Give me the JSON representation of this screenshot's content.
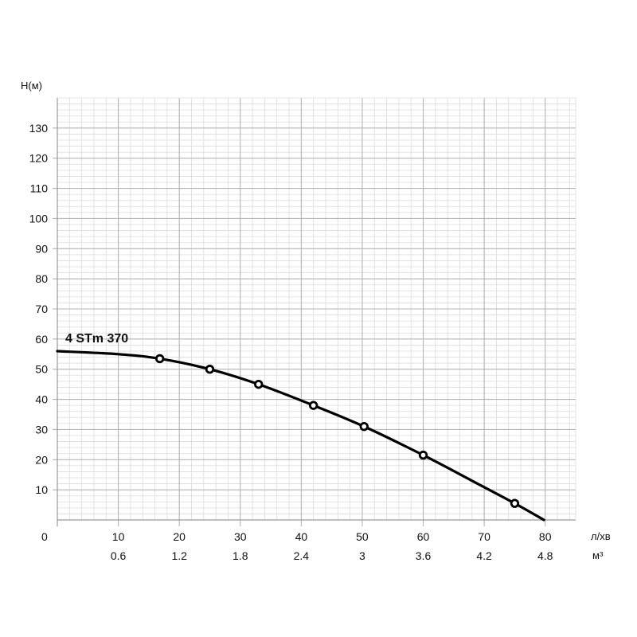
{
  "chart_data": {
    "type": "line",
    "ylabel": "Н(м)",
    "xlabel_primary": "л/хв",
    "xlabel_secondary": "м³",
    "origin_label": "0",
    "xlim": [
      0,
      85
    ],
    "ylim": [
      0,
      140
    ],
    "grid": true,
    "x_ticks": [
      {
        "value": 10,
        "label": "10",
        "label2": "0.6"
      },
      {
        "value": 20,
        "label": "20",
        "label2": "1.2"
      },
      {
        "value": 30,
        "label": "30",
        "label2": "1.8"
      },
      {
        "value": 40,
        "label": "40",
        "label2": "2.4"
      },
      {
        "value": 50,
        "label": "50",
        "label2": "3"
      },
      {
        "value": 60,
        "label": "60",
        "label2": "3.6"
      },
      {
        "value": 70,
        "label": "70",
        "label2": "4.2"
      },
      {
        "value": 80,
        "label": "80",
        "label2": "4.8"
      }
    ],
    "y_ticks": [
      {
        "value": 10,
        "label": "10"
      },
      {
        "value": 20,
        "label": "20"
      },
      {
        "value": 30,
        "label": "30"
      },
      {
        "value": 40,
        "label": "40"
      },
      {
        "value": 50,
        "label": "50"
      },
      {
        "value": 60,
        "label": "60"
      },
      {
        "value": 70,
        "label": "70"
      },
      {
        "value": 80,
        "label": "80"
      },
      {
        "value": 90,
        "label": "90"
      },
      {
        "value": 100,
        "label": "100"
      },
      {
        "value": 110,
        "label": "110"
      },
      {
        "value": 120,
        "label": "120"
      },
      {
        "value": 130,
        "label": "130"
      }
    ],
    "series": [
      {
        "name": "4 STm 370",
        "color": "#000000",
        "curve": [
          {
            "x": 0,
            "y": 56
          },
          {
            "x": 10,
            "y": 55
          },
          {
            "x": 16.8,
            "y": 53.5
          },
          {
            "x": 25,
            "y": 50
          },
          {
            "x": 33,
            "y": 45
          },
          {
            "x": 42,
            "y": 38
          },
          {
            "x": 50.3,
            "y": 31
          },
          {
            "x": 60,
            "y": 21.5
          },
          {
            "x": 68,
            "y": 13
          },
          {
            "x": 75,
            "y": 5.5
          },
          {
            "x": 79.8,
            "y": 0
          }
        ],
        "markers": [
          {
            "x": 16.8,
            "y": 53.5
          },
          {
            "x": 25,
            "y": 50
          },
          {
            "x": 33,
            "y": 45
          },
          {
            "x": 42,
            "y": 38
          },
          {
            "x": 50.3,
            "y": 31
          },
          {
            "x": 60,
            "y": 21.5
          },
          {
            "x": 75,
            "y": 5.5
          }
        ]
      }
    ],
    "colors": {
      "grid_major": "#b4b4b4",
      "grid_minor": "#dcdcdc",
      "axis": "#999999",
      "curve": "#000000",
      "marker_fill": "#ffffff"
    }
  }
}
